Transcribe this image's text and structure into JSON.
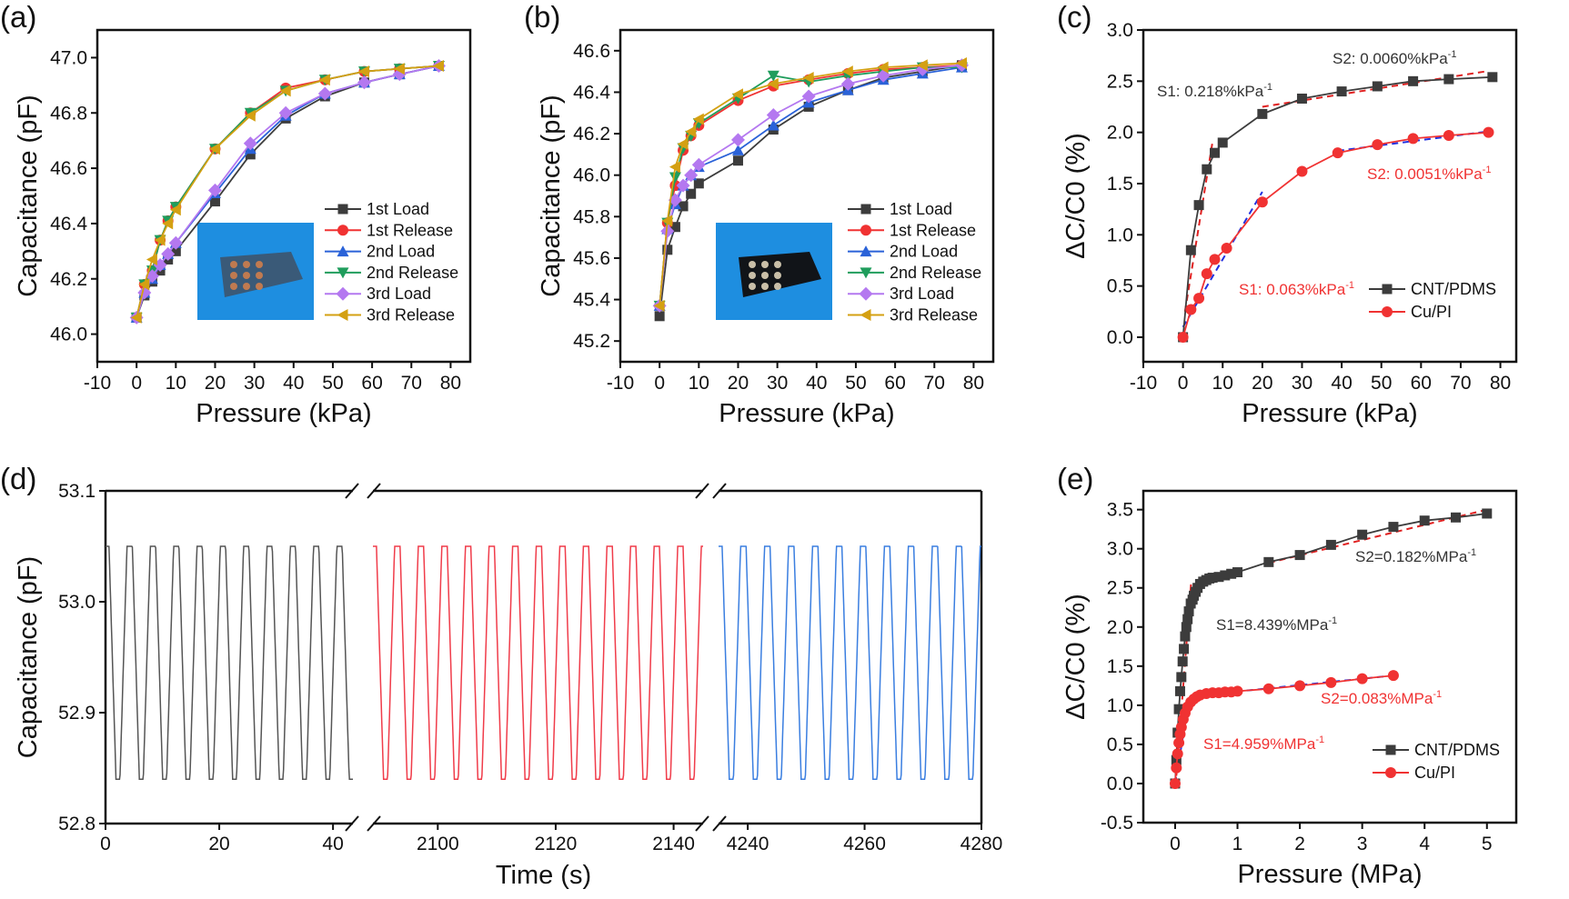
{
  "chart_data": [
    {
      "panel_label": "(a)",
      "type": "line",
      "xlabel": "Pressure (kPa)",
      "ylabel": "Capacitance (pF)",
      "xlim": [
        -10,
        85
      ],
      "ylim": [
        45.9,
        47.1
      ],
      "xticks": [
        "-10",
        "0",
        "10",
        "20",
        "30",
        "40",
        "50",
        "60",
        "70",
        "80"
      ],
      "yticks": [
        "46.0",
        "46.2",
        "46.4",
        "46.6",
        "46.8",
        "47.0"
      ],
      "legend_position": "bottom-right",
      "inset": "photo of sensor array on blue background",
      "x": [
        0,
        2,
        4,
        6,
        8,
        10,
        20,
        29,
        38,
        48,
        58,
        67,
        77
      ],
      "series": [
        {
          "name": "1st Load",
          "color": "#3c3c3c",
          "marker": "square",
          "values": [
            46.06,
            46.14,
            46.19,
            46.23,
            46.27,
            46.3,
            46.48,
            46.65,
            46.78,
            46.86,
            46.91,
            46.94,
            46.97
          ]
        },
        {
          "name": "1st Release",
          "color": "#f03232",
          "marker": "circle",
          "values": [
            46.06,
            46.18,
            46.23,
            46.34,
            46.41,
            46.46,
            46.67,
            46.8,
            46.89,
            46.92,
            46.95,
            46.96,
            46.97
          ]
        },
        {
          "name": "2nd Load",
          "color": "#2a62d8",
          "marker": "triangle-up",
          "values": [
            46.06,
            46.15,
            46.2,
            46.25,
            46.29,
            46.33,
            46.51,
            46.67,
            46.79,
            46.87,
            46.91,
            46.94,
            46.97
          ]
        },
        {
          "name": "2nd Release",
          "color": "#1f9d5c",
          "marker": "triangle-down",
          "values": [
            46.06,
            46.18,
            46.23,
            46.34,
            46.41,
            46.46,
            46.67,
            46.8,
            46.88,
            46.92,
            46.95,
            46.96,
            46.97
          ]
        },
        {
          "name": "3rd Load",
          "color": "#b478f0",
          "marker": "diamond",
          "values": [
            46.06,
            46.15,
            46.21,
            46.25,
            46.29,
            46.33,
            46.52,
            46.69,
            46.8,
            46.87,
            46.91,
            46.94,
            46.97
          ]
        },
        {
          "name": "3rd Release",
          "color": "#d4a012",
          "marker": "triangle-left",
          "values": [
            46.06,
            46.18,
            46.27,
            46.34,
            46.4,
            46.45,
            46.67,
            46.79,
            46.88,
            46.92,
            46.95,
            46.96,
            46.97
          ]
        }
      ]
    },
    {
      "panel_label": "(b)",
      "type": "line",
      "xlabel": "Pressure (kPa)",
      "ylabel": "Capacitance (pF)",
      "xlim": [
        -10,
        85
      ],
      "ylim": [
        45.1,
        46.7
      ],
      "xticks": [
        "-10",
        "0",
        "10",
        "20",
        "30",
        "40",
        "50",
        "60",
        "70",
        "80"
      ],
      "yticks": [
        "45.2",
        "45.4",
        "45.6",
        "45.8",
        "46.0",
        "46.2",
        "46.4",
        "46.6"
      ],
      "legend_position": "bottom-right",
      "inset": "photo of black sensor array on blue background",
      "x": [
        0,
        2,
        4,
        6,
        8,
        10,
        20,
        29,
        38,
        48,
        57,
        67,
        77
      ],
      "series": [
        {
          "name": "1st Load",
          "color": "#3c3c3c",
          "marker": "square",
          "values": [
            45.32,
            45.64,
            45.75,
            45.85,
            45.91,
            45.96,
            46.07,
            46.22,
            46.33,
            46.41,
            46.47,
            46.5,
            46.53
          ]
        },
        {
          "name": "1st Release",
          "color": "#f03232",
          "marker": "circle",
          "values": [
            45.37,
            45.77,
            45.95,
            46.12,
            46.19,
            46.24,
            46.36,
            46.43,
            46.46,
            46.49,
            46.51,
            46.52,
            46.53
          ]
        },
        {
          "name": "2nd Load",
          "color": "#2a62d8",
          "marker": "triangle-up",
          "values": [
            45.37,
            45.74,
            45.86,
            45.95,
            46.0,
            46.04,
            46.12,
            46.24,
            46.35,
            46.41,
            46.46,
            46.49,
            46.52
          ]
        },
        {
          "name": "2nd Release",
          "color": "#1f9d5c",
          "marker": "triangle-down",
          "values": [
            45.37,
            45.77,
            45.99,
            46.13,
            46.19,
            46.25,
            46.37,
            46.48,
            46.45,
            46.48,
            46.5,
            46.52,
            46.52
          ]
        },
        {
          "name": "3rd Load",
          "color": "#b478f0",
          "marker": "diamond",
          "values": [
            45.37,
            45.73,
            45.88,
            45.95,
            46.0,
            46.05,
            46.17,
            46.29,
            46.38,
            46.44,
            46.48,
            46.51,
            46.53
          ]
        },
        {
          "name": "3rd Release",
          "color": "#d4a012",
          "marker": "triangle-left",
          "values": [
            45.37,
            45.78,
            46.04,
            46.15,
            46.21,
            46.27,
            46.39,
            46.44,
            46.47,
            46.5,
            46.52,
            46.53,
            46.54
          ]
        }
      ]
    },
    {
      "panel_label": "(c)",
      "type": "line",
      "xlabel": "Pressure (kPa)",
      "ylabel": "ΔC/C0 (%)",
      "xlim": [
        -10,
        84
      ],
      "ylim": [
        -0.24,
        3.0
      ],
      "xticks": [
        "-10",
        "0",
        "10",
        "20",
        "30",
        "40",
        "50",
        "60",
        "70",
        "80"
      ],
      "yticks": [
        "0.0",
        "0.5",
        "1.0",
        "1.5",
        "2.0",
        "2.5",
        "3.0"
      ],
      "legend_position": "bottom-right",
      "series": [
        {
          "name": "CNT/PDMS",
          "color": "#3c3c3c",
          "marker": "square",
          "x": [
            0,
            2,
            4,
            6,
            8,
            10,
            20,
            30,
            40,
            49,
            58,
            67,
            78
          ],
          "values": [
            0,
            0.85,
            1.29,
            1.64,
            1.8,
            1.9,
            2.18,
            2.33,
            2.4,
            2.45,
            2.5,
            2.52,
            2.54
          ]
        },
        {
          "name": "Cu/PI",
          "color": "#f03232",
          "marker": "circle",
          "x": [
            0,
            2,
            4,
            6,
            8,
            11,
            20,
            30,
            39,
            49,
            58,
            67,
            77
          ],
          "values": [
            0,
            0.27,
            0.38,
            0.62,
            0.76,
            0.87,
            1.32,
            1.62,
            1.8,
            1.88,
            1.94,
            1.97,
            2.0
          ]
        }
      ],
      "fits": [
        {
          "color": "#e02020",
          "from": [
            0.5,
            0.25
          ],
          "to": [
            7.5,
            1.92
          ]
        },
        {
          "color": "#e02020",
          "from": [
            20,
            2.25
          ],
          "to": [
            77,
            2.6
          ]
        },
        {
          "color": "#2030e0",
          "from": [
            0,
            0.1
          ],
          "to": [
            20,
            1.42
          ]
        },
        {
          "color": "#2030e0",
          "from": [
            39,
            1.82
          ],
          "to": [
            77,
            2.01
          ]
        }
      ],
      "annotations": [
        {
          "text": "S1: 0.218%kPa",
          "sup": "-1",
          "color": "#333333"
        },
        {
          "text": "S2: 0.0060%kPa",
          "sup": "-1",
          "color": "#333333"
        },
        {
          "text": "S1: 0.063%kPa",
          "sup": "-1",
          "color": "#f03232"
        },
        {
          "text": "S2: 0.0051%kPa",
          "sup": "-1",
          "color": "#f03232"
        }
      ]
    },
    {
      "panel_label": "(d)",
      "type": "line",
      "xlabel": "Time (s)",
      "ylabel": "Capacitance (pF)",
      "ylim": [
        52.8,
        53.1
      ],
      "yticks": [
        "52.8",
        "52.9",
        "53.0",
        "53.1"
      ],
      "broken_x_axis": true,
      "segments": [
        {
          "xlim": [
            0,
            43.5
          ],
          "xticks": [
            "0",
            "20",
            "40"
          ],
          "color": "#555555",
          "period": 4.1,
          "high": 53.05,
          "low": 52.84
        },
        {
          "xlim": [
            2089,
            2145
          ],
          "xticks": [
            "2100",
            "2120",
            "2140"
          ],
          "color": "#f03c4a",
          "period": 4.0,
          "high": 53.05,
          "low": 52.84
        },
        {
          "xlim": [
            4235,
            4280
          ],
          "xticks": [
            "4240",
            "4260",
            "4280"
          ],
          "color": "#3a7ee0",
          "period": 4.1,
          "high": 53.05,
          "low": 52.84
        }
      ]
    },
    {
      "panel_label": "(e)",
      "type": "line",
      "xlabel": "Pressure (MPa)",
      "ylabel": "ΔC/C0 (%)",
      "xlim": [
        -0.51,
        5.47
      ],
      "ylim": [
        -0.5,
        3.74
      ],
      "xticks": [
        "0",
        "1",
        "2",
        "3",
        "4",
        "5"
      ],
      "yticks": [
        "-0.5",
        "0.0",
        "0.5",
        "1.0",
        "1.5",
        "2.0",
        "2.5",
        "3.0",
        "3.5"
      ],
      "legend_position": "bottom-right",
      "series": [
        {
          "name": "CNT/PDMS",
          "color": "#3c3c3c",
          "marker": "square",
          "x": [
            0,
            0.02,
            0.04,
            0.06,
            0.08,
            0.1,
            0.12,
            0.14,
            0.16,
            0.18,
            0.2,
            0.22,
            0.25,
            0.28,
            0.3,
            0.33,
            0.36,
            0.4,
            0.45,
            0.5,
            0.55,
            0.6,
            0.7,
            0.8,
            0.9,
            1.0,
            1.5,
            2,
            2.5,
            3,
            3.5,
            4,
            4.5,
            5
          ],
          "values": [
            0,
            0.3,
            0.65,
            0.95,
            1.18,
            1.36,
            1.56,
            1.72,
            1.88,
            2.0,
            2.1,
            2.2,
            2.3,
            2.35,
            2.4,
            2.45,
            2.5,
            2.55,
            2.58,
            2.6,
            2.62,
            2.63,
            2.64,
            2.66,
            2.68,
            2.7,
            2.83,
            2.92,
            3.05,
            3.18,
            3.28,
            3.36,
            3.4,
            3.45
          ]
        },
        {
          "name": "Cu/PI",
          "color": "#f03232",
          "marker": "circle",
          "x": [
            0,
            0.02,
            0.04,
            0.06,
            0.08,
            0.1,
            0.13,
            0.16,
            0.2,
            0.25,
            0.3,
            0.35,
            0.4,
            0.5,
            0.6,
            0.7,
            0.8,
            0.9,
            1.0,
            1.5,
            2,
            2.5,
            3,
            3.5
          ],
          "values": [
            0,
            0.2,
            0.38,
            0.52,
            0.63,
            0.72,
            0.82,
            0.9,
            0.98,
            1.04,
            1.08,
            1.11,
            1.13,
            1.15,
            1.16,
            1.16,
            1.17,
            1.17,
            1.18,
            1.21,
            1.25,
            1.29,
            1.34,
            1.38
          ]
        }
      ],
      "fits": [
        {
          "color": "#e02020",
          "from": [
            0.02,
            0.1
          ],
          "to": [
            0.26,
            2.6
          ]
        },
        {
          "color": "#e02020",
          "from": [
            1.5,
            2.82
          ],
          "to": [
            5,
            3.5
          ]
        },
        {
          "color": "#2030e0",
          "from": [
            0,
            0.0
          ],
          "to": [
            0.2,
            0.95
          ]
        },
        {
          "color": "#2030e0",
          "from": [
            0.8,
            1.16
          ],
          "to": [
            3.5,
            1.38
          ]
        }
      ],
      "annotations": [
        {
          "text": "S1=8.439%MPa",
          "sup": "-1",
          "color": "#333333"
        },
        {
          "text": "S2=0.182%MPa",
          "sup": "-1",
          "color": "#333333"
        },
        {
          "text": "S1=4.959%MPa",
          "sup": "-1",
          "color": "#f03232"
        },
        {
          "text": "S2=0.083%MPa",
          "sup": "-1",
          "color": "#f03232"
        }
      ]
    }
  ]
}
